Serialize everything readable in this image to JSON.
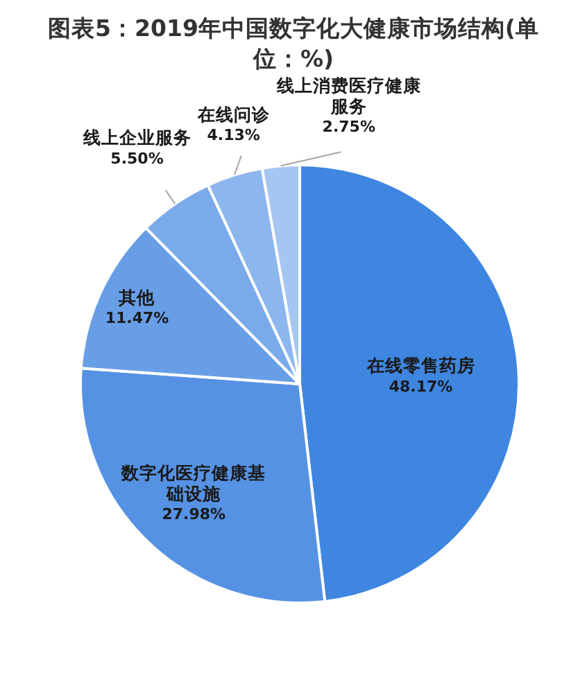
{
  "chart_data": {
    "type": "pie",
    "title": "图表5：2019年中国数字化大健康市场结构(单位：%)",
    "categories": [
      "在线零售药房",
      "数字化医疗健康基础设施",
      "其他",
      "线上企业服务",
      "在线问诊",
      "线上消费医疗健康服务"
    ],
    "values": [
      48.17,
      27.98,
      11.47,
      5.5,
      4.13,
      2.75
    ],
    "colors": [
      "#3f86e0",
      "#5592e3",
      "#689ee6",
      "#7aaaea",
      "#8cb6ee",
      "#a6c6f2"
    ],
    "value_labels": [
      "48.17%",
      "27.98%",
      "11.47%",
      "5.50%",
      "4.13%",
      "2.75%"
    ]
  }
}
